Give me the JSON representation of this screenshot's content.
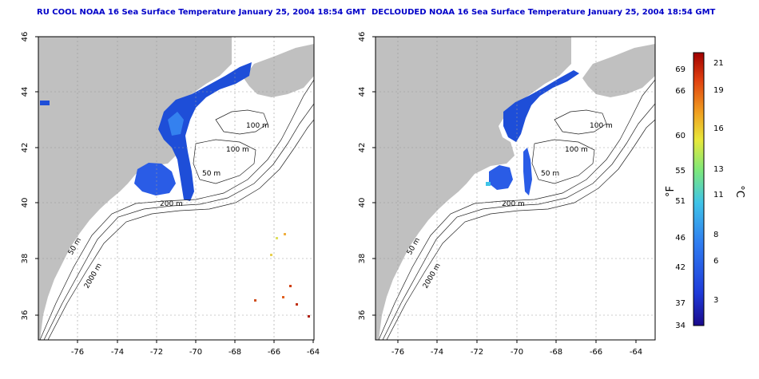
{
  "panels": [
    {
      "title": "RU COOL NOAA 16 Sea Surface Temperature January 25, 2004 18:54 GMT",
      "x_ticks": [
        "-76",
        "-74",
        "-72",
        "-70",
        "-68",
        "-66",
        "-64"
      ],
      "y_ticks": [
        "36",
        "38",
        "40",
        "42",
        "44",
        "46"
      ],
      "contour_labels": [
        "100 m",
        "100 m",
        "50 m",
        "200 m",
        "50 m",
        "2000 m"
      ]
    },
    {
      "title": "DECLOUDED NOAA 16 Sea Surface Temperature January 25, 2004 18:54 GMT",
      "x_ticks": [
        "-76",
        "-74",
        "-72",
        "-70",
        "-68",
        "-66",
        "-64"
      ],
      "y_ticks": [
        "36",
        "38",
        "40",
        "42",
        "44",
        "46"
      ],
      "contour_labels": [
        "100 m",
        "100 m",
        "50 m",
        "200 m",
        "50 m",
        "2000 m"
      ]
    }
  ],
  "colorbar": {
    "left_label": "°F",
    "right_label": "°C",
    "fahrenheit_ticks": [
      "69",
      "66",
      "60",
      "55",
      "51",
      "46",
      "42",
      "37",
      "34"
    ],
    "celsius_ticks": [
      "21",
      "19",
      "16",
      "13",
      "11",
      "8",
      "6",
      "3"
    ],
    "colors": [
      "#1a0a8c",
      "#1f3bd9",
      "#2f7cf0",
      "#3fc4e8",
      "#7ee87a",
      "#e8e83a",
      "#f0a020",
      "#e04010",
      "#a00000"
    ]
  }
}
